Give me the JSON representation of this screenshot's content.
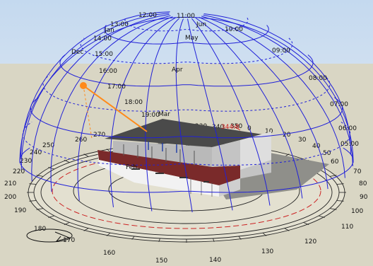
{
  "sun_path_diagram": {
    "hour_labels": [
      {
        "label": "12:00"
      },
      {
        "label": "11:00"
      },
      {
        "label": "13:00"
      },
      {
        "label": "10:00"
      },
      {
        "label": "14:00"
      },
      {
        "label": "09:00"
      },
      {
        "label": "15:00"
      },
      {
        "label": "08:00"
      },
      {
        "label": "16:00"
      },
      {
        "label": "07:00"
      },
      {
        "label": "17:00"
      },
      {
        "label": "06:00"
      },
      {
        "label": "18:00"
      },
      {
        "label": "19:00"
      },
      {
        "label": "05:00"
      }
    ],
    "month_labels": [
      {
        "label": "Jun"
      },
      {
        "label": "May"
      },
      {
        "label": "Apr"
      },
      {
        "label": "Mar"
      },
      {
        "label": "Feb"
      },
      {
        "label": "Jan"
      },
      {
        "label": "Dec"
      }
    ],
    "azimuth_labels": [
      {
        "label": "0"
      },
      {
        "label": "10"
      },
      {
        "label": "20"
      },
      {
        "label": "30"
      },
      {
        "label": "40"
      },
      {
        "label": "50"
      },
      {
        "label": "60"
      },
      {
        "label": "70"
      },
      {
        "label": "80"
      },
      {
        "label": "90"
      },
      {
        "label": "100"
      },
      {
        "label": "110"
      },
      {
        "label": "120"
      },
      {
        "label": "130"
      },
      {
        "label": "140"
      },
      {
        "label": "150"
      },
      {
        "label": "160"
      },
      {
        "label": "170"
      },
      {
        "label": "180"
      },
      {
        "label": "190"
      },
      {
        "label": "200"
      },
      {
        "label": "210"
      },
      {
        "label": "220"
      },
      {
        "label": "230"
      },
      {
        "label": "240"
      },
      {
        "label": "250"
      },
      {
        "label": "260"
      },
      {
        "label": "270"
      },
      {
        "label": "340"
      },
      {
        "label": "350"
      },
      {
        "label": "230"
      }
    ],
    "highlighted_label": "344.8",
    "colors": {
      "sky": "#c8dbef",
      "ground": "#d9d6c4",
      "sun_path_grid": "#2020d8",
      "sun": "#ff8a1a",
      "north_line": "#d02020",
      "roof": "#7a2a2a",
      "wall_light": "#f2f2f2",
      "wall_grey": "#c4c4c4",
      "shadow": "#8f8f8a"
    }
  }
}
